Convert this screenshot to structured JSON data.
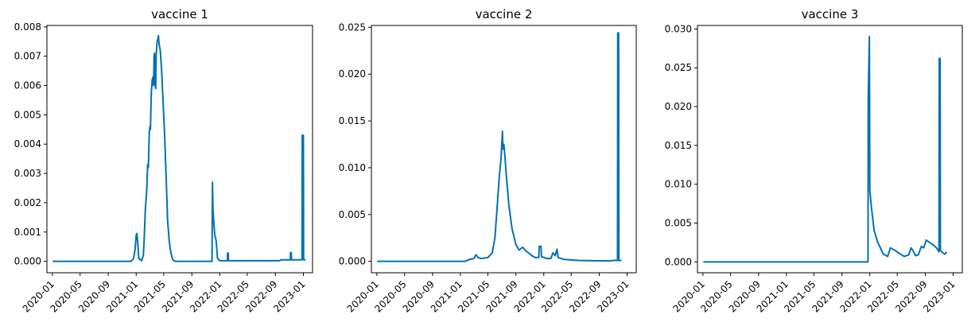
{
  "chart_data": [
    {
      "type": "line",
      "title": "vaccine 1",
      "xlabel": "",
      "ylabel": "",
      "x_range": [
        "2019-12-08",
        "2023-02-10"
      ],
      "ylim": [
        -0.00039,
        0.00805
      ],
      "x_tick_labels": [
        "2020-01",
        "2020-05",
        "2020-09",
        "2021-01",
        "2021-05",
        "2021-09",
        "2022-01",
        "2022-05",
        "2022-09",
        "2023-01"
      ],
      "y_ticks": [
        0,
        0.001,
        0.002,
        0.003,
        0.004,
        0.005,
        0.006,
        0.007,
        0.008
      ],
      "y_tick_labels": [
        "0.000",
        "0.001",
        "0.002",
        "0.003",
        "0.004",
        "0.005",
        "0.006",
        "0.007",
        "0.008"
      ],
      "grid": false,
      "series": [
        {
          "color": "#0072b2",
          "points": [
            [
              "2020-01-05",
              0
            ],
            [
              "2020-12-10",
              0
            ],
            [
              "2020-12-20",
              0.0001
            ],
            [
              "2020-12-27",
              0.0004
            ],
            [
              "2021-01-01",
              0.0009
            ],
            [
              "2021-01-04",
              0.00095
            ],
            [
              "2021-01-08",
              0.0006
            ],
            [
              "2021-01-12",
              0.0001
            ],
            [
              "2021-01-25",
              2e-05
            ],
            [
              "2021-02-01",
              0.0002
            ],
            [
              "2021-02-05",
              0.0008
            ],
            [
              "2021-02-10",
              0.0018
            ],
            [
              "2021-02-15",
              0.0023
            ],
            [
              "2021-02-20",
              0.0033
            ],
            [
              "2021-02-23",
              0.0032
            ],
            [
              "2021-02-27",
              0.0044
            ],
            [
              "2021-03-02",
              0.0046
            ],
            [
              "2021-03-04",
              0.0045
            ],
            [
              "2021-03-08",
              0.0058
            ],
            [
              "2021-03-12",
              0.0062
            ],
            [
              "2021-03-16",
              0.0063
            ],
            [
              "2021-03-18",
              0.006
            ],
            [
              "2021-03-20",
              0.007
            ],
            [
              "2021-03-22",
              0.0071
            ],
            [
              "2021-03-24",
              0.0061
            ],
            [
              "2021-03-27",
              0.0059
            ],
            [
              "2021-03-29",
              0.007
            ],
            [
              "2021-04-02",
              0.0075
            ],
            [
              "2021-04-06",
              0.0076
            ],
            [
              "2021-04-08",
              0.0077
            ],
            [
              "2021-04-11",
              0.0074
            ],
            [
              "2021-04-16",
              0.0072
            ],
            [
              "2021-04-22",
              0.0065
            ],
            [
              "2021-04-28",
              0.0055
            ],
            [
              "2021-05-05",
              0.0043
            ],
            [
              "2021-05-12",
              0.0028
            ],
            [
              "2021-05-18",
              0.0014
            ],
            [
              "2021-05-25",
              0.0007
            ],
            [
              "2021-06-01",
              0.0003
            ],
            [
              "2021-06-10",
              5e-05
            ],
            [
              "2021-06-20",
              0
            ],
            [
              "2021-11-28",
              0
            ],
            [
              "2021-11-29",
              0.0015
            ],
            [
              "2021-11-30",
              0.0027
            ],
            [
              "2021-12-02",
              0.0018
            ],
            [
              "2021-12-06",
              0.0013
            ],
            [
              "2021-12-10",
              0.0009
            ],
            [
              "2021-12-16",
              0.0007
            ],
            [
              "2021-12-22",
              0.0001
            ],
            [
              "2022-01-01",
              2e-05
            ],
            [
              "2022-02-03",
              2e-05
            ],
            [
              "2022-02-04",
              0.00028
            ],
            [
              "2022-02-07",
              0.00028
            ],
            [
              "2022-02-08",
              2e-05
            ],
            [
              "2022-09-20",
              2e-05
            ],
            [
              "2022-09-25",
              5e-05
            ],
            [
              "2022-11-05",
              5e-05
            ],
            [
              "2022-11-06",
              0.0003
            ],
            [
              "2022-11-09",
              0.0003
            ],
            [
              "2022-11-10",
              5e-05
            ],
            [
              "2022-12-26",
              5e-05
            ],
            [
              "2022-12-27",
              0.0043
            ],
            [
              "2023-01-01",
              0.0043
            ],
            [
              "2023-01-02",
              5e-05
            ],
            [
              "2023-01-08",
              5e-05
            ]
          ]
        }
      ]
    },
    {
      "type": "line",
      "title": "vaccine 2",
      "xlabel": "",
      "ylabel": "",
      "x_range": [
        "2019-12-08",
        "2023-02-10"
      ],
      "ylim": [
        -0.00122,
        0.0252
      ],
      "x_tick_labels": [
        "2020-01",
        "2020-05",
        "2020-09",
        "2021-01",
        "2021-05",
        "2021-09",
        "2022-01",
        "2022-05",
        "2022-09",
        "2023-01"
      ],
      "y_ticks": [
        0,
        0.005,
        0.01,
        0.015,
        0.02,
        0.025
      ],
      "y_tick_labels": [
        "0.000",
        "0.005",
        "0.010",
        "0.015",
        "0.020",
        "0.025"
      ],
      "grid": false,
      "series": [
        {
          "color": "#0072b2",
          "points": [
            [
              "2020-01-05",
              0
            ],
            [
              "2021-01-20",
              0
            ],
            [
              "2021-02-10",
              0.0002
            ],
            [
              "2021-03-01",
              0.0003
            ],
            [
              "2021-03-10",
              0.0007
            ],
            [
              "2021-03-20",
              0.0004
            ],
            [
              "2021-04-01",
              0.0003
            ],
            [
              "2021-05-01",
              0.0004
            ],
            [
              "2021-05-20",
              0.0009
            ],
            [
              "2021-06-01",
              0.0025
            ],
            [
              "2021-06-10",
              0.0055
            ],
            [
              "2021-06-20",
              0.009
            ],
            [
              "2021-06-28",
              0.011
            ],
            [
              "2021-07-04",
              0.0139
            ],
            [
              "2021-07-06",
              0.012
            ],
            [
              "2021-07-10",
              0.0125
            ],
            [
              "2021-07-14",
              0.0115
            ],
            [
              "2021-07-20",
              0.0095
            ],
            [
              "2021-08-01",
              0.006
            ],
            [
              "2021-08-15",
              0.0035
            ],
            [
              "2021-09-01",
              0.0018
            ],
            [
              "2021-09-15",
              0.0012
            ],
            [
              "2021-10-01",
              0.0015
            ],
            [
              "2021-10-15",
              0.0011
            ],
            [
              "2021-11-01",
              0.0008
            ],
            [
              "2021-11-10",
              0.0006
            ],
            [
              "2021-11-25",
              0.0004
            ],
            [
              "2021-12-10",
              0.0004
            ],
            [
              "2021-12-12",
              0.0016
            ],
            [
              "2021-12-20",
              0.0016
            ],
            [
              "2021-12-22",
              0.0005
            ],
            [
              "2022-01-15",
              0.0003
            ],
            [
              "2022-02-01",
              0.0003
            ],
            [
              "2022-02-10",
              0.0009
            ],
            [
              "2022-02-20",
              0.0006
            ],
            [
              "2022-02-28",
              0.0013
            ],
            [
              "2022-03-05",
              0.0004
            ],
            [
              "2022-04-01",
              0.0002
            ],
            [
              "2022-06-01",
              0.0001
            ],
            [
              "2022-09-01",
              5e-05
            ],
            [
              "2022-10-20",
              5e-05
            ],
            [
              "2022-11-05",
              0.0001
            ],
            [
              "2022-11-20",
              0.0001
            ],
            [
              "2022-11-21",
              0.0244
            ],
            [
              "2022-11-25",
              0.0244
            ],
            [
              "2022-11-26",
              0.0001
            ],
            [
              "2022-12-05",
              0.0001
            ]
          ]
        }
      ]
    },
    {
      "type": "line",
      "title": "vaccine 3",
      "xlabel": "",
      "ylabel": "",
      "x_range": [
        "2019-12-08",
        "2023-02-10"
      ],
      "ylim": [
        -0.0014,
        0.03045
      ],
      "x_tick_labels": [
        "2020-01",
        "2020-05",
        "2020-09",
        "2021-01",
        "2021-05",
        "2021-09",
        "2022-01",
        "2022-05",
        "2022-09",
        "2023-01"
      ],
      "y_ticks": [
        0,
        0.005,
        0.01,
        0.015,
        0.02,
        0.025,
        0.03
      ],
      "y_tick_labels": [
        "0.000",
        "0.005",
        "0.010",
        "0.015",
        "0.020",
        "0.025",
        "0.030"
      ],
      "grid": false,
      "series": [
        {
          "color": "#0072b2",
          "points": [
            [
              "2020-01-05",
              0
            ],
            [
              "2021-12-24",
              0
            ],
            [
              "2021-12-25",
              0.021
            ],
            [
              "2021-12-30",
              0.029
            ],
            [
              "2022-01-01",
              0.0092
            ],
            [
              "2022-01-08",
              0.007
            ],
            [
              "2022-01-20",
              0.004
            ],
            [
              "2022-02-05",
              0.0025
            ],
            [
              "2022-03-01",
              0.001
            ],
            [
              "2022-03-20",
              0.0007
            ],
            [
              "2022-04-01",
              0.0018
            ],
            [
              "2022-04-20",
              0.0015
            ],
            [
              "2022-05-15",
              0.001
            ],
            [
              "2022-06-01",
              0.0007
            ],
            [
              "2022-06-20",
              0.0009
            ],
            [
              "2022-07-01",
              0.0018
            ],
            [
              "2022-07-08",
              0.0015
            ],
            [
              "2022-07-20",
              0.0008
            ],
            [
              "2022-08-01",
              0.0009
            ],
            [
              "2022-08-15",
              0.002
            ],
            [
              "2022-08-25",
              0.0018
            ],
            [
              "2022-09-05",
              0.0028
            ],
            [
              "2022-09-20",
              0.0025
            ],
            [
              "2022-10-05",
              0.0022
            ],
            [
              "2022-10-20",
              0.0018
            ],
            [
              "2022-10-31",
              0.0013
            ],
            [
              "2022-11-01",
              0.0262
            ],
            [
              "2022-11-05",
              0.0262
            ],
            [
              "2022-11-06",
              0.0015
            ],
            [
              "2022-11-15",
              0.0012
            ],
            [
              "2022-11-25",
              0.001
            ],
            [
              "2022-12-02",
              0.0012
            ]
          ]
        }
      ]
    }
  ]
}
